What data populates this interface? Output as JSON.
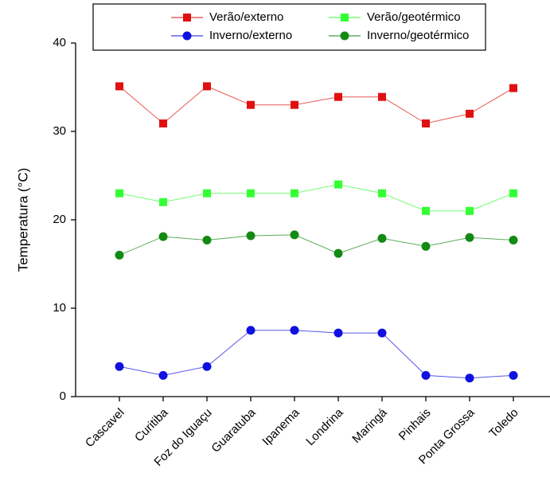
{
  "chart_data": {
    "type": "line",
    "y_label": "Temperatura (°C)",
    "categories": [
      "Cascavel",
      "Curitiba",
      "Foz do Iguaçu",
      "Guaratuba",
      "Ipanema",
      "Londrina",
      "Maringá",
      "Pinhais",
      "Ponta Grossa",
      "Toledo"
    ],
    "series": [
      {
        "name": "Verão/externo",
        "color": "#e01010",
        "marker": "square",
        "values": [
          35.1,
          30.9,
          35.1,
          33,
          33,
          33.9,
          33.9,
          30.9,
          32,
          34.9
        ]
      },
      {
        "name": "Verão/geotérmico",
        "color": "#33ff33",
        "marker": "square",
        "values": [
          23,
          22,
          23,
          23,
          23,
          24,
          23,
          21,
          21,
          23
        ]
      },
      {
        "name": "Inverno/externo",
        "color": "#1010e0",
        "marker": "circle",
        "values": [
          3.4,
          2.4,
          3.4,
          7.5,
          7.5,
          7.2,
          7.2,
          2.4,
          2.1,
          2.4
        ]
      },
      {
        "name": "Inverno/geotérmico",
        "color": "#138a13",
        "marker": "circle",
        "values": [
          16,
          18.1,
          17.7,
          18.2,
          18.3,
          16.2,
          17.9,
          17,
          18,
          17.7
        ]
      }
    ],
    "ylim": [
      0,
      40
    ],
    "yticks": [
      0,
      10,
      20,
      30,
      40
    ],
    "grid": false,
    "legend": "top"
  }
}
